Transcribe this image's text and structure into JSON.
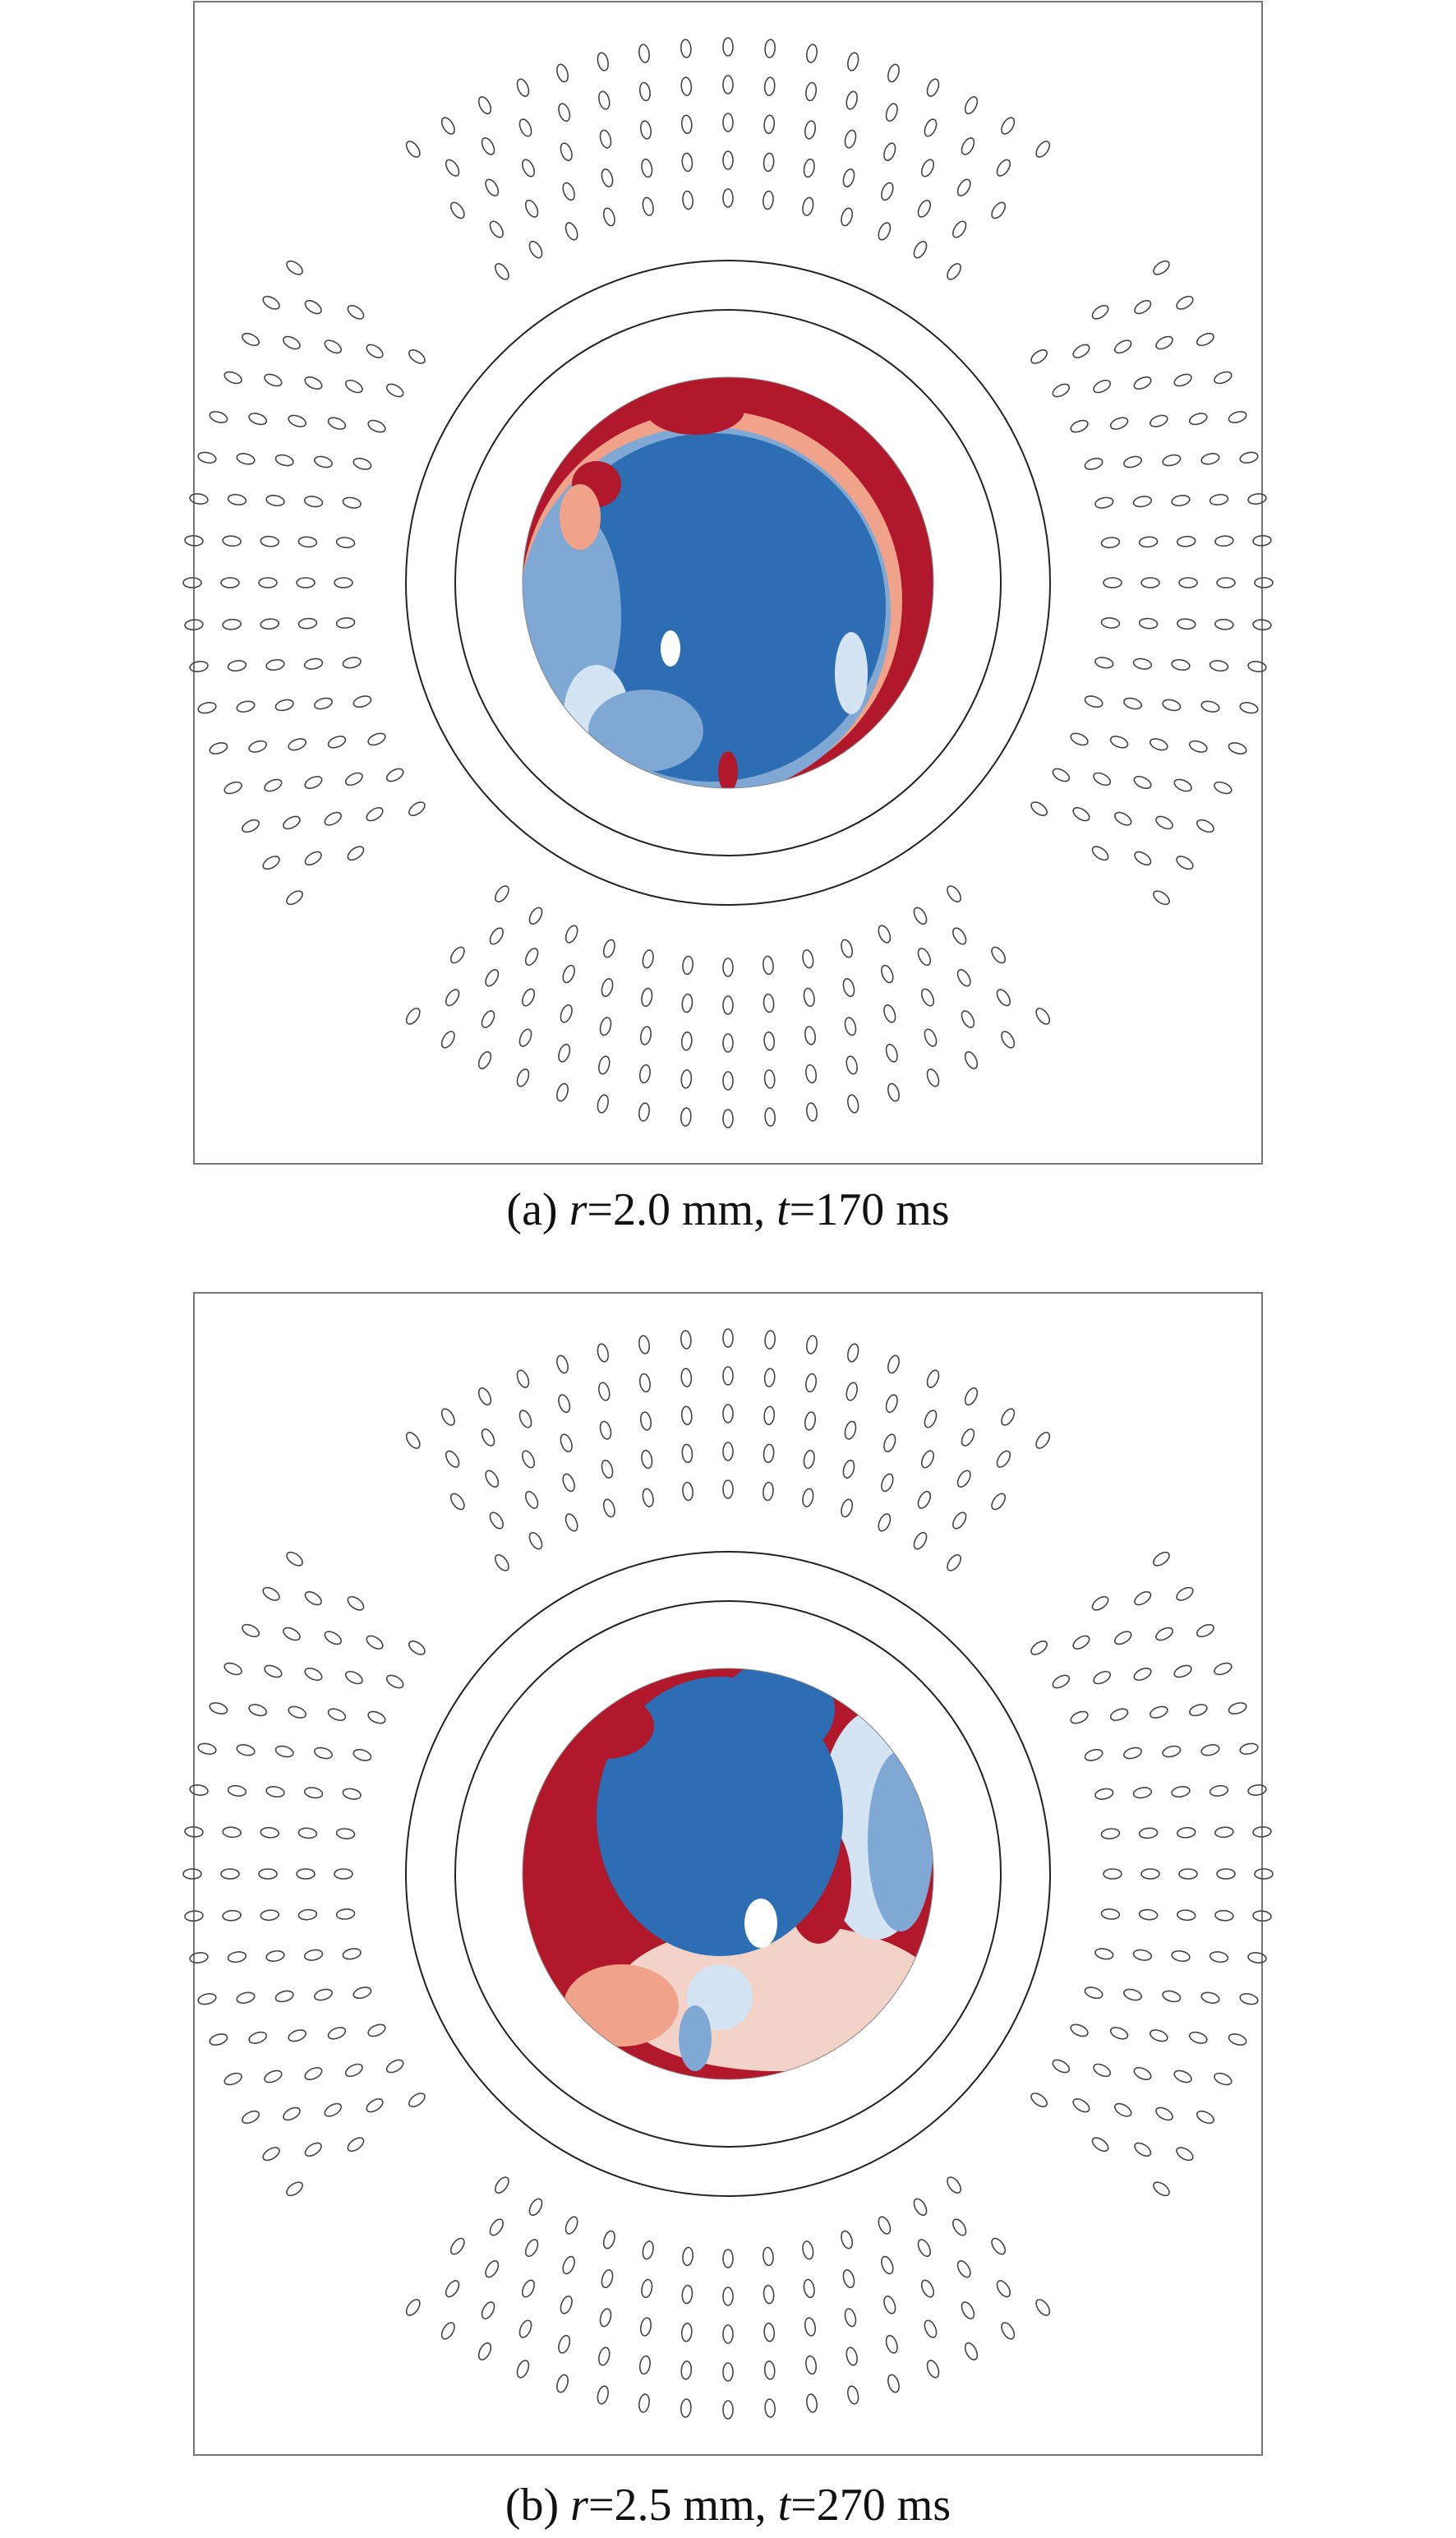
{
  "panels": [
    {
      "caption": {
        "label": "(a) ",
        "var1": "r",
        "text1": "=2.0 mm, ",
        "var2": "t",
        "text2": "=170 ms"
      }
    },
    {
      "caption": {
        "label": "(b) ",
        "var1": "r",
        "text1": "=2.5 mm, ",
        "var2": "t",
        "text2": "=270 ms"
      }
    }
  ]
}
